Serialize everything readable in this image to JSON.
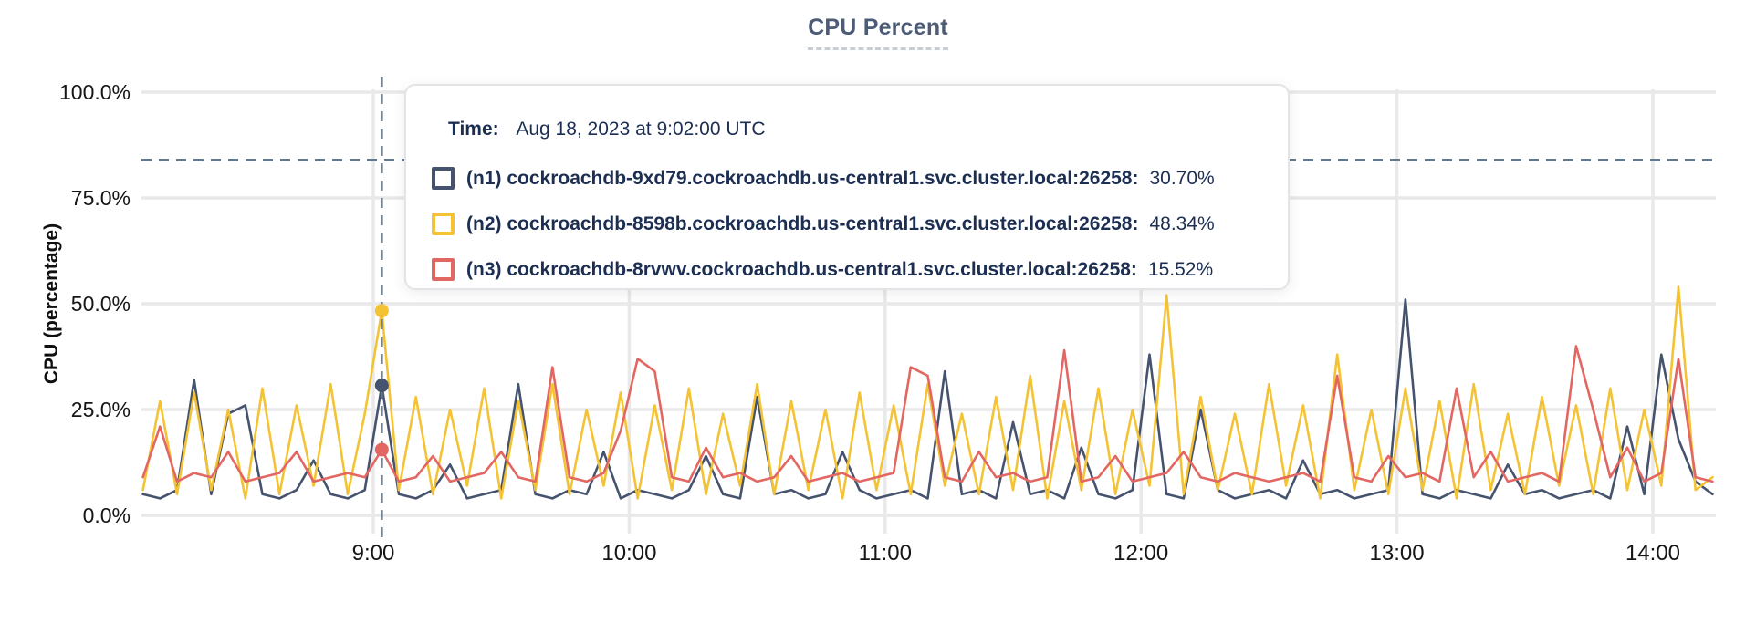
{
  "page": {
    "background": "#ffffff"
  },
  "chart_data": {
    "type": "line",
    "title": "CPU Percent",
    "xlabel": "",
    "ylabel": "CPU (percentage)",
    "ylim": [
      0,
      100
    ],
    "grid": true,
    "legend_position": "tooltip-overlay",
    "y_ticks": [
      {
        "value": 0,
        "label": "0.0%"
      },
      {
        "value": 25,
        "label": "25.0%"
      },
      {
        "value": 50,
        "label": "50.0%"
      },
      {
        "value": 75,
        "label": "75.0%"
      },
      {
        "value": 100,
        "label": "100.0%"
      }
    ],
    "x_ticks": [
      {
        "minute": 540,
        "label": "9:00"
      },
      {
        "minute": 600,
        "label": "10:00"
      },
      {
        "minute": 660,
        "label": "11:00"
      },
      {
        "minute": 720,
        "label": "12:00"
      },
      {
        "minute": 780,
        "label": "13:00"
      },
      {
        "minute": 840,
        "label": "14:00"
      }
    ],
    "x_start_minute": 486,
    "x_step_minutes": 4,
    "x_range_minutes": [
      486,
      855
    ],
    "series": [
      {
        "id": "n1",
        "name": "(n1) cockroachdb-9xd79.cockroachdb.us-central1.svc.cluster.local:26258",
        "color": "#46536e",
        "values": [
          5,
          4,
          6,
          32,
          5,
          24,
          26,
          5,
          4,
          6,
          13,
          5,
          4,
          6,
          30.7,
          5,
          4,
          6,
          12,
          4,
          5,
          6,
          31,
          5,
          4,
          6,
          5,
          15,
          4,
          6,
          5,
          4,
          6,
          14,
          5,
          4,
          28,
          5,
          6,
          4,
          5,
          15,
          6,
          4,
          5,
          6,
          4,
          34,
          5,
          6,
          4,
          22,
          5,
          6,
          4,
          16,
          5,
          4,
          6,
          38,
          5,
          4,
          25,
          6,
          4,
          5,
          6,
          4,
          13,
          5,
          6,
          4,
          5,
          6,
          51,
          5,
          4,
          6,
          5,
          4,
          12,
          5,
          6,
          4,
          5,
          6,
          4,
          21,
          5,
          38,
          18,
          8,
          5
        ]
      },
      {
        "id": "n2",
        "name": "(n2) cockroachdb-8598b.cockroachdb.us-central1.svc.cluster.local:26258",
        "color": "#f4c335",
        "values": [
          6,
          27,
          5,
          29,
          6,
          25,
          4,
          30,
          5,
          26,
          7,
          31,
          5,
          24,
          48.34,
          6,
          28,
          5,
          25,
          7,
          30,
          4,
          27,
          6,
          31,
          5,
          25,
          7,
          29,
          4,
          26,
          6,
          30,
          5,
          24,
          7,
          31,
          5,
          27,
          6,
          25,
          4,
          29,
          6,
          26,
          5,
          31,
          7,
          24,
          5,
          28,
          6,
          33,
          4,
          27,
          6,
          30,
          5,
          25,
          7,
          52,
          5,
          28,
          6,
          24,
          5,
          31,
          7,
          26,
          4,
          38,
          6,
          25,
          5,
          30,
          6,
          27,
          4,
          31,
          6,
          24,
          5,
          28,
          7,
          26,
          5,
          30,
          6,
          25,
          7,
          54,
          6,
          9
        ]
      },
      {
        "id": "n3",
        "name": "(n3) cockroachdb-8rvwv.cockroachdb.us-central1.svc.cluster.local:26258",
        "color": "#e26762",
        "values": [
          9,
          21,
          8,
          10,
          9,
          15,
          8,
          9,
          10,
          15,
          8,
          9,
          10,
          9,
          15.52,
          8,
          9,
          14,
          8,
          9,
          10,
          15,
          9,
          8,
          35,
          9,
          8,
          10,
          20,
          37,
          34,
          9,
          8,
          16,
          9,
          10,
          8,
          9,
          14,
          8,
          9,
          10,
          8,
          9,
          10,
          35,
          33,
          9,
          8,
          15,
          9,
          10,
          8,
          9,
          39,
          8,
          9,
          14,
          8,
          9,
          10,
          15,
          9,
          8,
          10,
          9,
          8,
          9,
          10,
          8,
          33,
          9,
          8,
          14,
          9,
          10,
          8,
          30,
          9,
          15,
          8,
          9,
          10,
          8,
          40,
          25,
          9,
          16,
          8,
          10,
          37,
          9,
          8
        ]
      }
    ],
    "hover": {
      "time_minute": 542,
      "crosshair_y_percent": 84,
      "points": [
        {
          "series": "n1",
          "value": 30.7
        },
        {
          "series": "n2",
          "value": 48.34
        },
        {
          "series": "n3",
          "value": 15.52
        }
      ]
    }
  },
  "tooltip": {
    "time_label": "Time:",
    "time_value": "Aug 18, 2023 at 9:02:00 UTC",
    "rows": [
      {
        "label": "(n1) cockroachdb-9xd79.cockroachdb.us-central1.svc.cluster.local:26258:",
        "value": "30.70%"
      },
      {
        "label": "(n2) cockroachdb-8598b.cockroachdb.us-central1.svc.cluster.local:26258:",
        "value": "48.34%"
      },
      {
        "label": "(n3) cockroachdb-8rvwv.cockroachdb.us-central1.svc.cluster.local:26258:",
        "value": "15.52%"
      }
    ]
  },
  "colors": {
    "title": "#4c5b76",
    "gridline": "#e9e9e9",
    "crosshair": "#64788c",
    "tooltip_text": "#1c2e52",
    "tick_label": "#161616"
  }
}
